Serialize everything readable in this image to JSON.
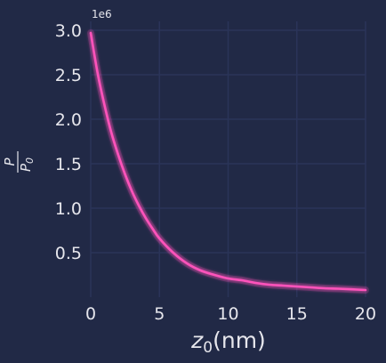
{
  "chart_data": {
    "type": "line",
    "title": "",
    "xlabel_main": "z",
    "xlabel_sub": "0",
    "xlabel_unit": "(nm)",
    "ylabel_num": "P",
    "ylabel_den_main": "P",
    "ylabel_den_sub": "0",
    "y_offset_text": "1e6",
    "xlim": [
      0,
      20
    ],
    "ylim": [
      0,
      3.1
    ],
    "grid": true,
    "x_ticks": [
      0,
      5,
      10,
      15,
      20
    ],
    "x_tick_labels": [
      "0",
      "5",
      "10",
      "15",
      "20"
    ],
    "y_ticks": [
      0.5,
      1.0,
      1.5,
      2.0,
      2.5,
      3.0
    ],
    "y_tick_labels": [
      "0.5",
      "1.0",
      "1.5",
      "2.0",
      "2.5",
      "3.0"
    ],
    "series": [
      {
        "color": "#FE53BB",
        "x": [
          0,
          0.5,
          1,
          1.5,
          2,
          2.5,
          3,
          3.5,
          4,
          4.5,
          5,
          6,
          7,
          8,
          9,
          10,
          11,
          12,
          13,
          14,
          15,
          16,
          17,
          18,
          19,
          20
        ],
        "y": [
          2.97,
          2.52,
          2.16,
          1.85,
          1.6,
          1.38,
          1.19,
          1.03,
          0.89,
          0.77,
          0.66,
          0.5,
          0.38,
          0.3,
          0.25,
          0.21,
          0.19,
          0.16,
          0.14,
          0.13,
          0.12,
          0.11,
          0.1,
          0.095,
          0.088,
          0.08
        ]
      }
    ]
  }
}
